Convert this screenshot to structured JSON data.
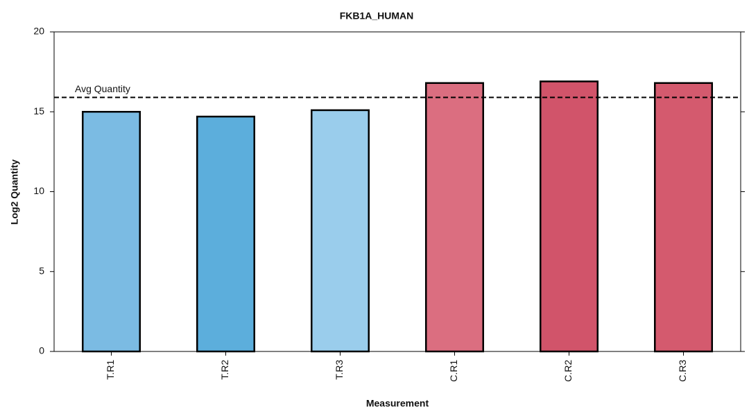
{
  "chart_data": {
    "type": "bar",
    "title": "FKB1A_HUMAN",
    "x_label": "Measurement",
    "y_label": "Log2 Quantity",
    "categories": [
      "T.R1",
      "T.R2",
      "T.R3",
      "C.R1",
      "C.R2",
      "C.R3"
    ],
    "values": [
      15.0,
      14.7,
      15.1,
      16.8,
      16.9,
      16.8
    ],
    "colors": [
      "#7bbbe3",
      "#5caedc",
      "#9acdec",
      "#db6e80",
      "#d1546a",
      "#d45a6e"
    ],
    "ylim": [
      0,
      20
    ],
    "yticks": [
      0,
      5,
      10,
      15,
      20
    ],
    "reference_line": {
      "value": 15.9,
      "label": "Avg Quantity"
    }
  }
}
